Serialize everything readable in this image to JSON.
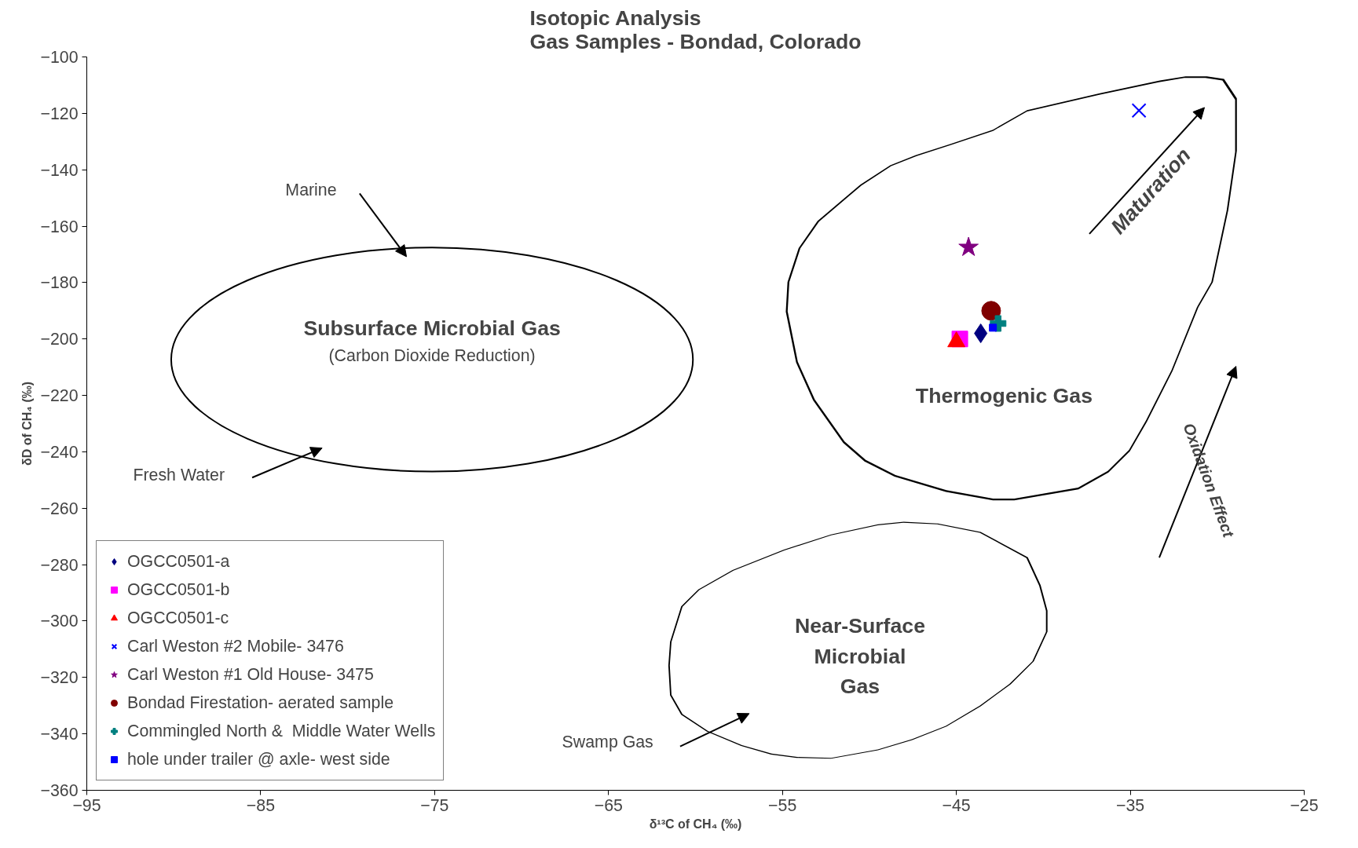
{
  "chart_data": {
    "type": "scatter",
    "title": "Isotopic Analysis\nGas Samples - Bondad, Colorado",
    "xlabel": "δ¹³C of CH₄ (‰)",
    "ylabel": "δD of CH₄ (‰)",
    "xlim": [
      -95,
      -25
    ],
    "xticks": [
      -95,
      -85,
      -75,
      -65,
      -55,
      -45,
      -35,
      -25
    ],
    "ylim": [
      -360,
      -100
    ],
    "yticks": [
      -360,
      -340,
      -320,
      -300,
      -280,
      -260,
      -240,
      -220,
      -200,
      -180,
      -160,
      -140,
      -120,
      -100
    ],
    "grid": false,
    "legend": "bottom left",
    "series": [
      {
        "name": "OGCC0501-a",
        "color": "#000080",
        "marker": "diamond",
        "x": [
          -43.6
        ],
        "values": [
          -198
        ]
      },
      {
        "name": "OGCC0501-b",
        "color": "#ff00ff",
        "marker": "square",
        "x": [
          -44.8
        ],
        "values": [
          -200
        ]
      },
      {
        "name": "OGCC0501-c",
        "color": "#ff0000",
        "marker": "triangle",
        "x": [
          -45
        ],
        "values": [
          -201
        ]
      },
      {
        "name": "Carl Weston #2 Mobile- 3476",
        "color": "#0000ff",
        "marker": "x",
        "x": [
          -34.5
        ],
        "values": [
          -119
        ]
      },
      {
        "name": "Carl Weston #1 Old House- 3475",
        "color": "#800080",
        "marker": "star",
        "x": [
          -44.3
        ],
        "values": [
          -167.5
        ]
      },
      {
        "name": "Bondad Firestation- aerated sample",
        "color": "#800000",
        "marker": "circle",
        "x": [
          -43
        ],
        "values": [
          -190
        ]
      },
      {
        "name": "Commingled North &  Middle Water Wells",
        "color": "#008080",
        "marker": "cross",
        "x": [
          -42.6
        ],
        "values": [
          -194.5
        ]
      },
      {
        "name": "hole under trailer @ axle- west side",
        "color": "#0000ff",
        "marker": "square",
        "x": [
          -42.9
        ],
        "values": [
          -196
        ]
      }
    ],
    "annotations": [
      "Subsurface Microbial Gas",
      "(Carbon Dioxide Reduction)",
      "Marine",
      "Fresh Water",
      "Thermogenic Gas",
      "Near-Surface\nMicrobial\nGas",
      "Swamp Gas",
      "Maturation",
      "Oxidation Effect"
    ]
  }
}
